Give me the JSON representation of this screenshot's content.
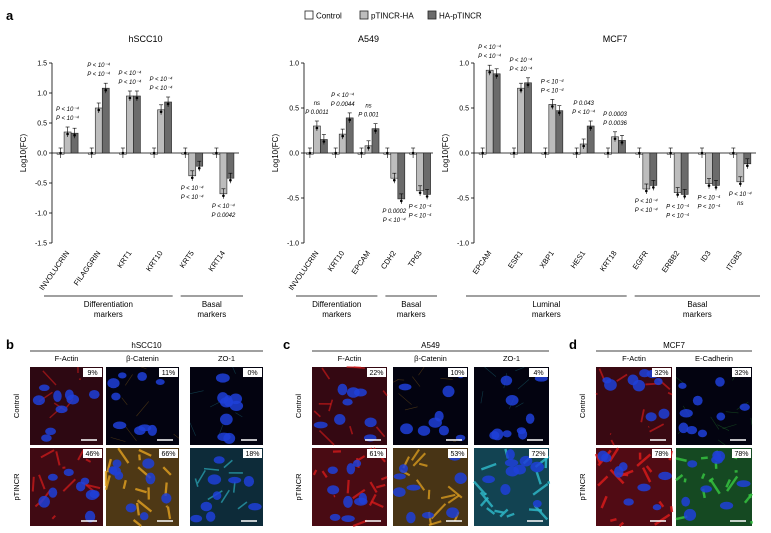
{
  "figure": {
    "panel_letters": {
      "a": "a",
      "b": "b",
      "c": "c",
      "d": "d"
    },
    "legend": [
      {
        "label": "Control",
        "color": "#ffffff"
      },
      {
        "label": "pTINCR-HA",
        "color": "#bdbdbd"
      },
      {
        "label": "HA-pTINCR",
        "color": "#6b6b6b"
      }
    ],
    "colors": {
      "bar_border": "#222222",
      "grid": "#000000"
    }
  },
  "chart_data": [
    {
      "type": "bar",
      "title": "hSCC10",
      "ylabel": "Log10(FC)",
      "ylim": [
        -1.5,
        1.5
      ],
      "yticks": [
        "1.5",
        "1.0",
        "0.5",
        "0.0",
        "-0.5",
        "-1.0",
        "-1.5"
      ],
      "categories": [
        "INVOLUCRIN",
        "FILAGGRIN",
        "KRT1",
        "KRT10",
        "KRT5",
        "KRT14"
      ],
      "series": [
        {
          "name": "Control",
          "values": [
            0.0,
            0.0,
            0.0,
            0.0,
            0.0,
            0.0
          ]
        },
        {
          "name": "pTINCR-HA",
          "values": [
            0.35,
            0.75,
            0.95,
            0.72,
            -0.38,
            -0.68
          ]
        },
        {
          "name": "HA-pTINCR",
          "values": [
            0.33,
            1.08,
            0.95,
            0.85,
            -0.22,
            -0.42
          ]
        }
      ],
      "annotations": [
        [
          "P < 10⁻⁴",
          "P < 10⁻⁴"
        ],
        [
          "P < 10⁻⁴",
          "P < 10⁻⁴"
        ],
        [
          "P < 10⁻⁴",
          "P < 10⁻⁴"
        ],
        [
          "P < 10⁻⁴",
          "P < 10⁻⁴"
        ],
        [
          "P < 10⁻⁴",
          "P < 10⁻⁴"
        ],
        [
          "P < 10⁻⁴",
          "P 0.0042"
        ]
      ],
      "groups": [
        {
          "label": "Differentiation markers",
          "line1": "Differentiation",
          "line2": "markers"
        },
        {
          "label": "Basal markers",
          "line1": "Basal",
          "line2": "markers"
        }
      ]
    },
    {
      "type": "bar",
      "title": "A549",
      "ylabel": "Log10(FC)",
      "ylim": [
        -1.0,
        1.0
      ],
      "yticks": [
        "1.0",
        "0.5",
        "0.0",
        "-0.5",
        "-1.0"
      ],
      "categories": [
        "INVOLUCRIN",
        "KRT10",
        "EPCAM",
        "CDH2",
        "TP63"
      ],
      "series": [
        {
          "name": "Control",
          "values": [
            0.0,
            0.0,
            0.0,
            0.0,
            0.0
          ]
        },
        {
          "name": "pTINCR-HA",
          "values": [
            0.3,
            0.21,
            0.08,
            -0.28,
            -0.42
          ]
        },
        {
          "name": "HA-pTINCR",
          "values": [
            0.15,
            0.39,
            0.27,
            -0.51,
            -0.46
          ]
        }
      ],
      "annotations": [
        [
          "ns",
          "P 0.0011"
        ],
        [
          "P < 10⁻⁴",
          "P 0.0044"
        ],
        [
          "ns",
          "P 0.001"
        ],
        [
          "P 0.0002",
          "P < 10⁻⁴"
        ],
        [
          "P < 10⁻⁴",
          "P < 10⁻⁴"
        ]
      ],
      "groups": [
        {
          "label": "Differentiation markers",
          "line1": "Differentiation",
          "line2": "markers"
        },
        {
          "label": "Basal markers",
          "line1": "Basal",
          "line2": "markers"
        }
      ]
    },
    {
      "type": "bar",
      "title": "MCF7",
      "ylabel": "Log10(FC)",
      "ylim": [
        -1.0,
        1.0
      ],
      "yticks": [
        "1.0",
        "0.5",
        "0.0",
        "-0.5",
        "-1.0"
      ],
      "categories": [
        "EPCAM",
        "ESR1",
        "XBP1",
        "HES1",
        "KRT18",
        "EGFR",
        "ERBB2",
        "ID3",
        "ITGB3"
      ],
      "series": [
        {
          "name": "Control",
          "values": [
            0.0,
            0.0,
            0.0,
            0.0,
            0.0,
            0.0,
            0.0,
            0.0,
            0.0
          ]
        },
        {
          "name": "pTINCR-HA",
          "values": [
            0.92,
            0.72,
            0.54,
            0.1,
            0.18,
            -0.4,
            -0.44,
            -0.34,
            -0.32
          ]
        },
        {
          "name": "HA-pTINCR",
          "values": [
            0.88,
            0.78,
            0.47,
            0.3,
            0.14,
            -0.36,
            -0.46,
            -0.36,
            -0.12
          ]
        }
      ],
      "annotations": [
        [
          "P < 10⁻⁴",
          "P < 10⁻⁴"
        ],
        [
          "P < 10⁻⁴",
          "P < 10⁻⁴"
        ],
        [
          "P < 10⁻⁴",
          "P < 10⁻⁴"
        ],
        [
          "P 0.043",
          "P < 10⁻⁴"
        ],
        [
          "P 0.0003",
          "P 0.0036"
        ],
        [
          "P < 10⁻⁴",
          "P < 10⁻⁴"
        ],
        [
          "P < 10⁻⁴",
          "P < 10⁻⁴"
        ],
        [
          "P < 10⁻⁴",
          "P < 10⁻⁴"
        ],
        [
          "P < 10⁻⁴",
          "ns"
        ]
      ],
      "groups": [
        {
          "label": "Luminal markers",
          "line1": "Luminal",
          "line2": "markers"
        },
        {
          "label": "Basal markers",
          "line1": "Basal",
          "line2": "markers"
        }
      ]
    }
  ],
  "micrographs": {
    "b": {
      "title": "hSCC10",
      "columns": [
        "F-Actin",
        "β-Catenin",
        "ZO-1"
      ],
      "rows": [
        "Control",
        "pTINCR"
      ],
      "percentages": [
        [
          "9%",
          "11%",
          "0%"
        ],
        [
          "46%",
          "66%",
          "18%"
        ]
      ],
      "stain_colors": [
        "#d41b1b",
        "#e0a020",
        "#2fb8c8"
      ]
    },
    "c": {
      "title": "A549",
      "columns": [
        "F-Actin",
        "β-Catenin",
        "ZO-1"
      ],
      "rows": [
        "Control",
        "pTINCR"
      ],
      "percentages": [
        [
          "22%",
          "10%",
          "4%"
        ],
        [
          "61%",
          "53%",
          "72%"
        ]
      ],
      "stain_colors": [
        "#d41b1b",
        "#e0a020",
        "#2fb8c8"
      ]
    },
    "d": {
      "title": "MCF7",
      "columns": [
        "F-Actin",
        "E-Cadherin"
      ],
      "rows": [
        "Control",
        "pTINCR"
      ],
      "percentages": [
        [
          "32%",
          "32%"
        ],
        [
          "78%",
          "78%"
        ]
      ],
      "stain_colors": [
        "#d41b1b",
        "#35c040"
      ]
    },
    "nucleus_color": "#1f3fd8"
  }
}
